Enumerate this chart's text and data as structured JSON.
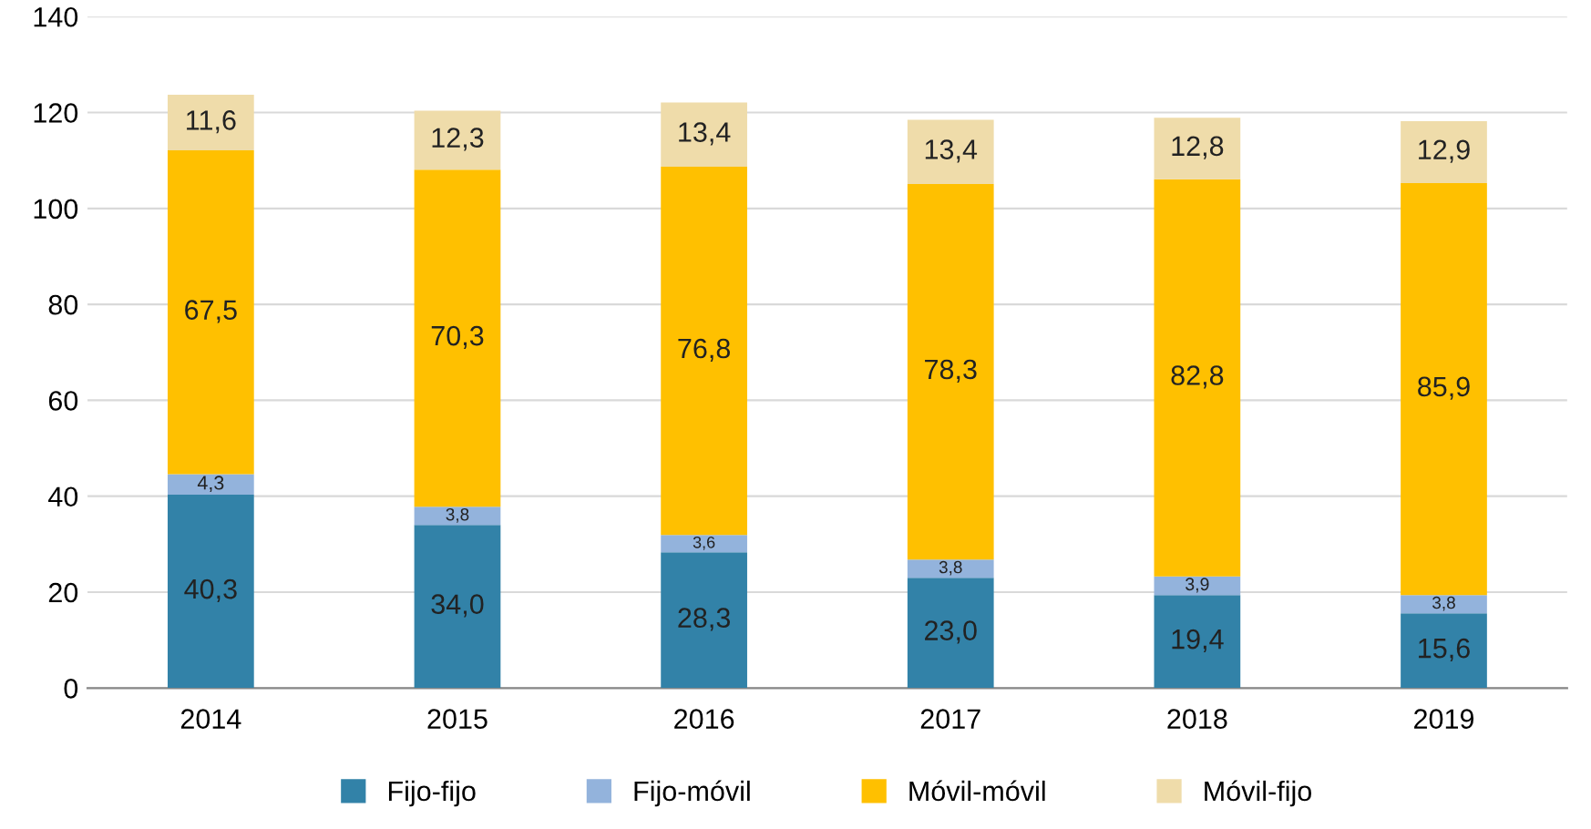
{
  "chart_data": {
    "type": "bar",
    "stacked": true,
    "categories": [
      "2014",
      "2015",
      "2016",
      "2017",
      "2018",
      "2019"
    ],
    "series": [
      {
        "name": "Fijo-fijo",
        "color": "#3282a8",
        "values": [
          40.3,
          34.0,
          28.3,
          23.0,
          19.4,
          15.6
        ],
        "value_labels": [
          "40,3",
          "34,0",
          "28,3",
          "23,0",
          "19,4",
          "15,6"
        ]
      },
      {
        "name": "Fijo-móvil",
        "color": "#93b3dc",
        "values": [
          4.3,
          3.8,
          3.6,
          3.8,
          3.9,
          3.8
        ],
        "value_labels": [
          "4,3",
          "3,8",
          "3,6",
          "3,8",
          "3,9",
          "3,8"
        ]
      },
      {
        "name": "Móvil-móvil",
        "color": "#ffc000",
        "values": [
          67.5,
          70.3,
          76.8,
          78.3,
          82.8,
          85.9
        ],
        "value_labels": [
          "67,5",
          "70,3",
          "76,8",
          "78,3",
          "82,8",
          "85,9"
        ]
      },
      {
        "name": "Móvil-fijo",
        "color": "#efdcaa",
        "values": [
          11.6,
          12.3,
          13.4,
          13.4,
          12.8,
          12.9
        ],
        "value_labels": [
          "11,6",
          "12,3",
          "13,4",
          "13,4",
          "12,8",
          "12,9"
        ]
      }
    ],
    "ylim": [
      0,
      140
    ],
    "yticks": [
      0,
      20,
      40,
      60,
      80,
      100,
      120,
      140
    ],
    "grid": "y",
    "legend": "bottom"
  }
}
